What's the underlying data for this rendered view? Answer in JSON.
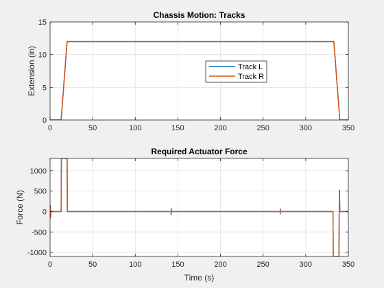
{
  "chart_data": [
    {
      "type": "line",
      "title": "Chassis Motion: Tracks",
      "xlabel": "",
      "ylabel": "Extension (in)",
      "xlim": [
        0,
        350
      ],
      "ylim": [
        0,
        15
      ],
      "xticks": [
        0,
        50,
        100,
        150,
        200,
        250,
        300,
        350
      ],
      "yticks": [
        0,
        5,
        10,
        15
      ],
      "grid": true,
      "legend": "center-right",
      "series": [
        {
          "name": "Track L",
          "color": "#0072BD",
          "x": [
            0,
            13,
            20,
            333,
            340,
            350
          ],
          "y": [
            0,
            0,
            12,
            12,
            0,
            0
          ]
        },
        {
          "name": "Track R",
          "color": "#D95319",
          "x": [
            0,
            13,
            20,
            333,
            340,
            350
          ],
          "y": [
            0,
            0,
            12,
            12,
            0,
            0
          ]
        }
      ]
    },
    {
      "type": "line",
      "title": "Required Actuator Force",
      "xlabel": "Time (s)",
      "ylabel": "Force (N)",
      "xlim": [
        0,
        350
      ],
      "ylim": [
        -1100,
        1300
      ],
      "xticks": [
        0,
        50,
        100,
        150,
        200,
        250,
        300,
        350
      ],
      "yticks": [
        -1000,
        -500,
        0,
        500,
        1000
      ],
      "grid": true,
      "series": [
        {
          "name": "Track L",
          "color": "#0072BD",
          "x": [
            0,
            0.3,
            0.6,
            1,
            13,
            13.3,
            20,
            20.3,
            142,
            142.1,
            142.2,
            142.3,
            270,
            270.1,
            270.2,
            270.3,
            332,
            332.3,
            339,
            339.3,
            339.6,
            340,
            350
          ],
          "y": [
            0,
            150,
            -150,
            0,
            0,
            1300,
            1300,
            0,
            0,
            -80,
            60,
            0,
            0,
            -60,
            60,
            0,
            0,
            -1100,
            -1100,
            0,
            520,
            0,
            0
          ]
        },
        {
          "name": "Track R",
          "color": "#D95319",
          "x": [
            0,
            0.3,
            0.6,
            1,
            13,
            13.3,
            20,
            20.3,
            142,
            142.1,
            142.2,
            142.3,
            270,
            270.1,
            270.2,
            270.3,
            332,
            332.3,
            339,
            339.3,
            339.6,
            340,
            350
          ],
          "y": [
            0,
            120,
            -150,
            0,
            0,
            1300,
            1300,
            0,
            0,
            -50,
            80,
            0,
            0,
            -40,
            50,
            0,
            0,
            -1100,
            -1100,
            0,
            520,
            0,
            0
          ]
        }
      ]
    }
  ]
}
